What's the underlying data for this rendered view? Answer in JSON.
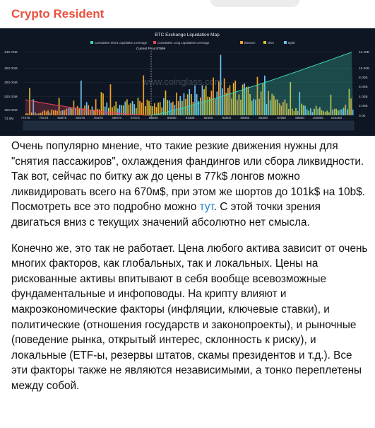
{
  "header": {
    "channel_name": "Crypto Resident"
  },
  "chart": {
    "title": "BTC Exchange Liquidation Map",
    "legend": [
      {
        "label": "Cumulative Short Liquidation Leverage",
        "color": "#3fd3b4"
      },
      {
        "label": "Cumulative Long Liquidation Leverage",
        "color": "#e8445a"
      },
      {
        "label": "Binance",
        "color": "#f0a028"
      },
      {
        "label": "OKX",
        "color": "#d8c02c"
      },
      {
        "label": "Bybit",
        "color": "#6cc3f0"
      }
    ],
    "current_price_label": "Current Price:87999",
    "watermark": "www.coinglass.com",
    "y_left_ticks": [
      "446.78M",
      "400.00M",
      "300.00M",
      "200.00M",
      "100.00M",
      "73.9M"
    ],
    "y_right_ticks": [
      "11.40B",
      "10.00B",
      "8.00B",
      "6.00B",
      "4.00B",
      "2.00B",
      "0.00"
    ],
    "x_ticks": [
      "77475",
      "79175",
      "80875",
      "82575",
      "84275",
      "85975",
      "87675",
      "88800",
      "90050",
      "91300",
      "92550",
      "93800",
      "95050",
      "96300",
      "97550",
      "98800",
      "100050",
      "101300"
    ]
  },
  "post": {
    "p1_a": "Очень популярно мнение, что такие резкие движения нужны для \"снятия пассажиров\", охлаждения фандингов или сбора ликвидности. Так вот, сейчас по битку аж до цены в 77k$ лонгов можно ликвидировать всего на 670м$, при этом же шортов до 101k$ на 10b$. Посмотреть все это подробно можно ",
    "p1_link": "тут",
    "p1_b": ". С этой точки зрения двигаться вниз с текущих значений абсолютно нет смысла.",
    "p2": "Конечно же, это так не работает. Цена любого актива зависит от очень многих факторов, как глобальных, так и локальных. Цены на рискованные активы впитывают в себя вообще всевозможные фундаментальные и инфоповоды. На крипту влияют и макроэкономические факторы (инфляции, ключевые ставки), и политические (отношения государств и законопроекты), и рыночные (поведение рынка, открытый интерес, склонность к риску), и локальные (ETF-ы, резервы штатов, скамы президентов и т.д.). Все эти факторы также не являются независимыми, а тонко переплетены между собой."
  }
}
